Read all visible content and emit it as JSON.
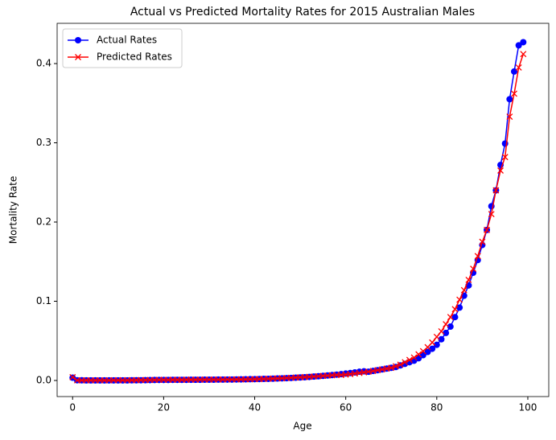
{
  "chart_data": {
    "type": "line",
    "title": "Actual vs Predicted Mortality Rates for 2015 Australian Males",
    "xlabel": "Age",
    "ylabel": "Mortality Rate",
    "x": [
      0,
      1,
      2,
      3,
      4,
      5,
      6,
      7,
      8,
      9,
      10,
      11,
      12,
      13,
      14,
      15,
      16,
      17,
      18,
      19,
      20,
      21,
      22,
      23,
      24,
      25,
      26,
      27,
      28,
      29,
      30,
      31,
      32,
      33,
      34,
      35,
      36,
      37,
      38,
      39,
      40,
      41,
      42,
      43,
      44,
      45,
      46,
      47,
      48,
      49,
      50,
      51,
      52,
      53,
      54,
      55,
      56,
      57,
      58,
      59,
      60,
      61,
      62,
      63,
      64,
      65,
      66,
      67,
      68,
      69,
      70,
      71,
      72,
      73,
      74,
      75,
      76,
      77,
      78,
      79,
      80,
      81,
      82,
      83,
      84,
      85,
      86,
      87,
      88,
      89,
      90,
      91,
      92,
      93,
      94,
      95,
      96,
      97,
      98,
      99
    ],
    "series": [
      {
        "name": "Actual Rates",
        "color": "#0000ff",
        "marker": "o",
        "values": [
          0.0035,
          0.0003,
          0.0002,
          0.0001,
          0.0001,
          0.0001,
          0.0001,
          0.0001,
          0.0001,
          0.0001,
          0.0001,
          0.0001,
          0.0001,
          0.0002,
          0.0002,
          0.0003,
          0.0004,
          0.0005,
          0.0006,
          0.0007,
          0.0007,
          0.0007,
          0.0008,
          0.0008,
          0.0008,
          0.0008,
          0.0009,
          0.0009,
          0.0009,
          0.001,
          0.001,
          0.001,
          0.0011,
          0.0011,
          0.0012,
          0.0012,
          0.0013,
          0.0014,
          0.0015,
          0.0016,
          0.0017,
          0.0018,
          0.002,
          0.0021,
          0.0023,
          0.0025,
          0.0027,
          0.0029,
          0.0032,
          0.0035,
          0.0038,
          0.0041,
          0.0045,
          0.0049,
          0.0053,
          0.0058,
          0.0063,
          0.0068,
          0.0074,
          0.008,
          0.0087,
          0.0094,
          0.0102,
          0.011,
          0.0115,
          0.011,
          0.012,
          0.013,
          0.014,
          0.015,
          0.016,
          0.017,
          0.019,
          0.021,
          0.023,
          0.025,
          0.028,
          0.032,
          0.036,
          0.04,
          0.045,
          0.052,
          0.06,
          0.068,
          0.08,
          0.092,
          0.107,
          0.12,
          0.136,
          0.152,
          0.171,
          0.19,
          0.22,
          0.24,
          0.272,
          0.299,
          0.355,
          0.39,
          0.423,
          0.427
        ]
      },
      {
        "name": "Predicted Rates",
        "color": "#ff0000",
        "marker": "x",
        "values": [
          0.0042,
          0.0002,
          0.0002,
          0.0002,
          0.0002,
          0.0002,
          0.0002,
          0.0002,
          0.0002,
          0.0003,
          0.0003,
          0.0003,
          0.0003,
          0.0004,
          0.0004,
          0.0005,
          0.0005,
          0.0006,
          0.0007,
          0.0008,
          0.0008,
          0.0008,
          0.0009,
          0.0009,
          0.0009,
          0.001,
          0.001,
          0.001,
          0.0011,
          0.0011,
          0.0011,
          0.0012,
          0.0012,
          0.0012,
          0.0013,
          0.0013,
          0.0014,
          0.0014,
          0.0015,
          0.0015,
          0.0017,
          0.0018,
          0.002,
          0.0022,
          0.0024,
          0.0026,
          0.0028,
          0.0031,
          0.0034,
          0.0037,
          0.004,
          0.0043,
          0.0046,
          0.005,
          0.0054,
          0.0058,
          0.0062,
          0.0066,
          0.007,
          0.007,
          0.0075,
          0.0081,
          0.0088,
          0.0095,
          0.0103,
          0.0111,
          0.012,
          0.013,
          0.014,
          0.015,
          0.016,
          0.018,
          0.02,
          0.023,
          0.026,
          0.029,
          0.033,
          0.037,
          0.042,
          0.048,
          0.055,
          0.062,
          0.071,
          0.08,
          0.09,
          0.102,
          0.114,
          0.127,
          0.141,
          0.157,
          0.175,
          0.19,
          0.21,
          0.24,
          0.265,
          0.282,
          0.333,
          0.362,
          0.395,
          0.412
        ]
      }
    ],
    "xlim": [
      -3.4,
      104.6
    ],
    "ylim": [
      -0.0203,
      0.4508
    ],
    "xticks": [
      0,
      20,
      40,
      60,
      80,
      100
    ],
    "yticks": [
      {
        "value": 0,
        "label": "0.0"
      },
      0.1,
      0.2,
      0.3,
      0.4
    ],
    "legend": "upper left",
    "grid": false
  }
}
